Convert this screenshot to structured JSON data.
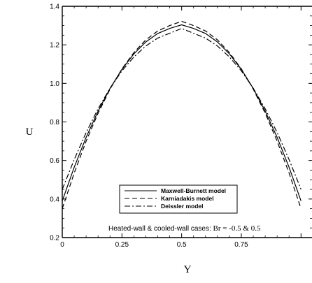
{
  "chart_data": {
    "type": "line",
    "title": "",
    "xlabel": "Y",
    "ylabel": "U",
    "xlim": [
      0,
      1
    ],
    "ylim": [
      0.2,
      1.4
    ],
    "x_ticks": [
      0,
      0.25,
      0.5,
      0.75
    ],
    "x_tick_labels": [
      "0",
      "0.25",
      "0.5",
      "0.75"
    ],
    "y_ticks": [
      0.2,
      0.4,
      0.6,
      0.8,
      1.0,
      1.2,
      1.4
    ],
    "y_tick_labels": [
      "0.2",
      "0.4",
      "0.6",
      "0.8",
      "1.0",
      "1.2",
      "1.4"
    ],
    "legend_position": "center-right",
    "annotation": {
      "prefix": "Heated-wall & cooled-wall cases: ",
      "value": "Br = -0.5 & 0.5"
    },
    "series": [
      {
        "name": "Maxwell-Burnett model",
        "line_style": "solid",
        "x": [
          0,
          0.05,
          0.1,
          0.15,
          0.2,
          0.25,
          0.3,
          0.35,
          0.4,
          0.45,
          0.5,
          0.55,
          0.6,
          0.65,
          0.7,
          0.75,
          0.8,
          0.85,
          0.9,
          0.95,
          1.0
        ],
        "y": [
          0.39,
          0.565,
          0.72,
          0.856,
          0.974,
          1.073,
          1.153,
          1.215,
          1.259,
          1.285,
          1.304,
          1.285,
          1.259,
          1.215,
          1.153,
          1.073,
          0.974,
          0.856,
          0.72,
          0.565,
          0.39
        ]
      },
      {
        "name": "Karniadakis model",
        "line_style": "dashed",
        "x": [
          0,
          0.05,
          0.1,
          0.15,
          0.2,
          0.25,
          0.3,
          0.35,
          0.4,
          0.45,
          0.5,
          0.55,
          0.6,
          0.65,
          0.7,
          0.75,
          0.8,
          0.85,
          0.9,
          0.95,
          1.0
        ],
        "y": [
          0.35,
          0.535,
          0.7,
          0.845,
          0.97,
          1.075,
          1.16,
          1.226,
          1.272,
          1.3,
          1.322,
          1.3,
          1.272,
          1.226,
          1.16,
          1.075,
          0.97,
          0.845,
          0.7,
          0.535,
          0.35
        ]
      },
      {
        "name": "Deissler model",
        "line_style": "dashdot",
        "x": [
          0,
          0.05,
          0.1,
          0.15,
          0.2,
          0.25,
          0.3,
          0.35,
          0.4,
          0.45,
          0.5,
          0.55,
          0.6,
          0.65,
          0.7,
          0.75,
          0.8,
          0.85,
          0.9,
          0.95,
          1.0
        ],
        "y": [
          0.45,
          0.605,
          0.745,
          0.868,
          0.975,
          1.065,
          1.137,
          1.194,
          1.235,
          1.26,
          1.285,
          1.26,
          1.235,
          1.194,
          1.137,
          1.065,
          0.975,
          0.868,
          0.745,
          0.605,
          0.45
        ]
      }
    ]
  }
}
